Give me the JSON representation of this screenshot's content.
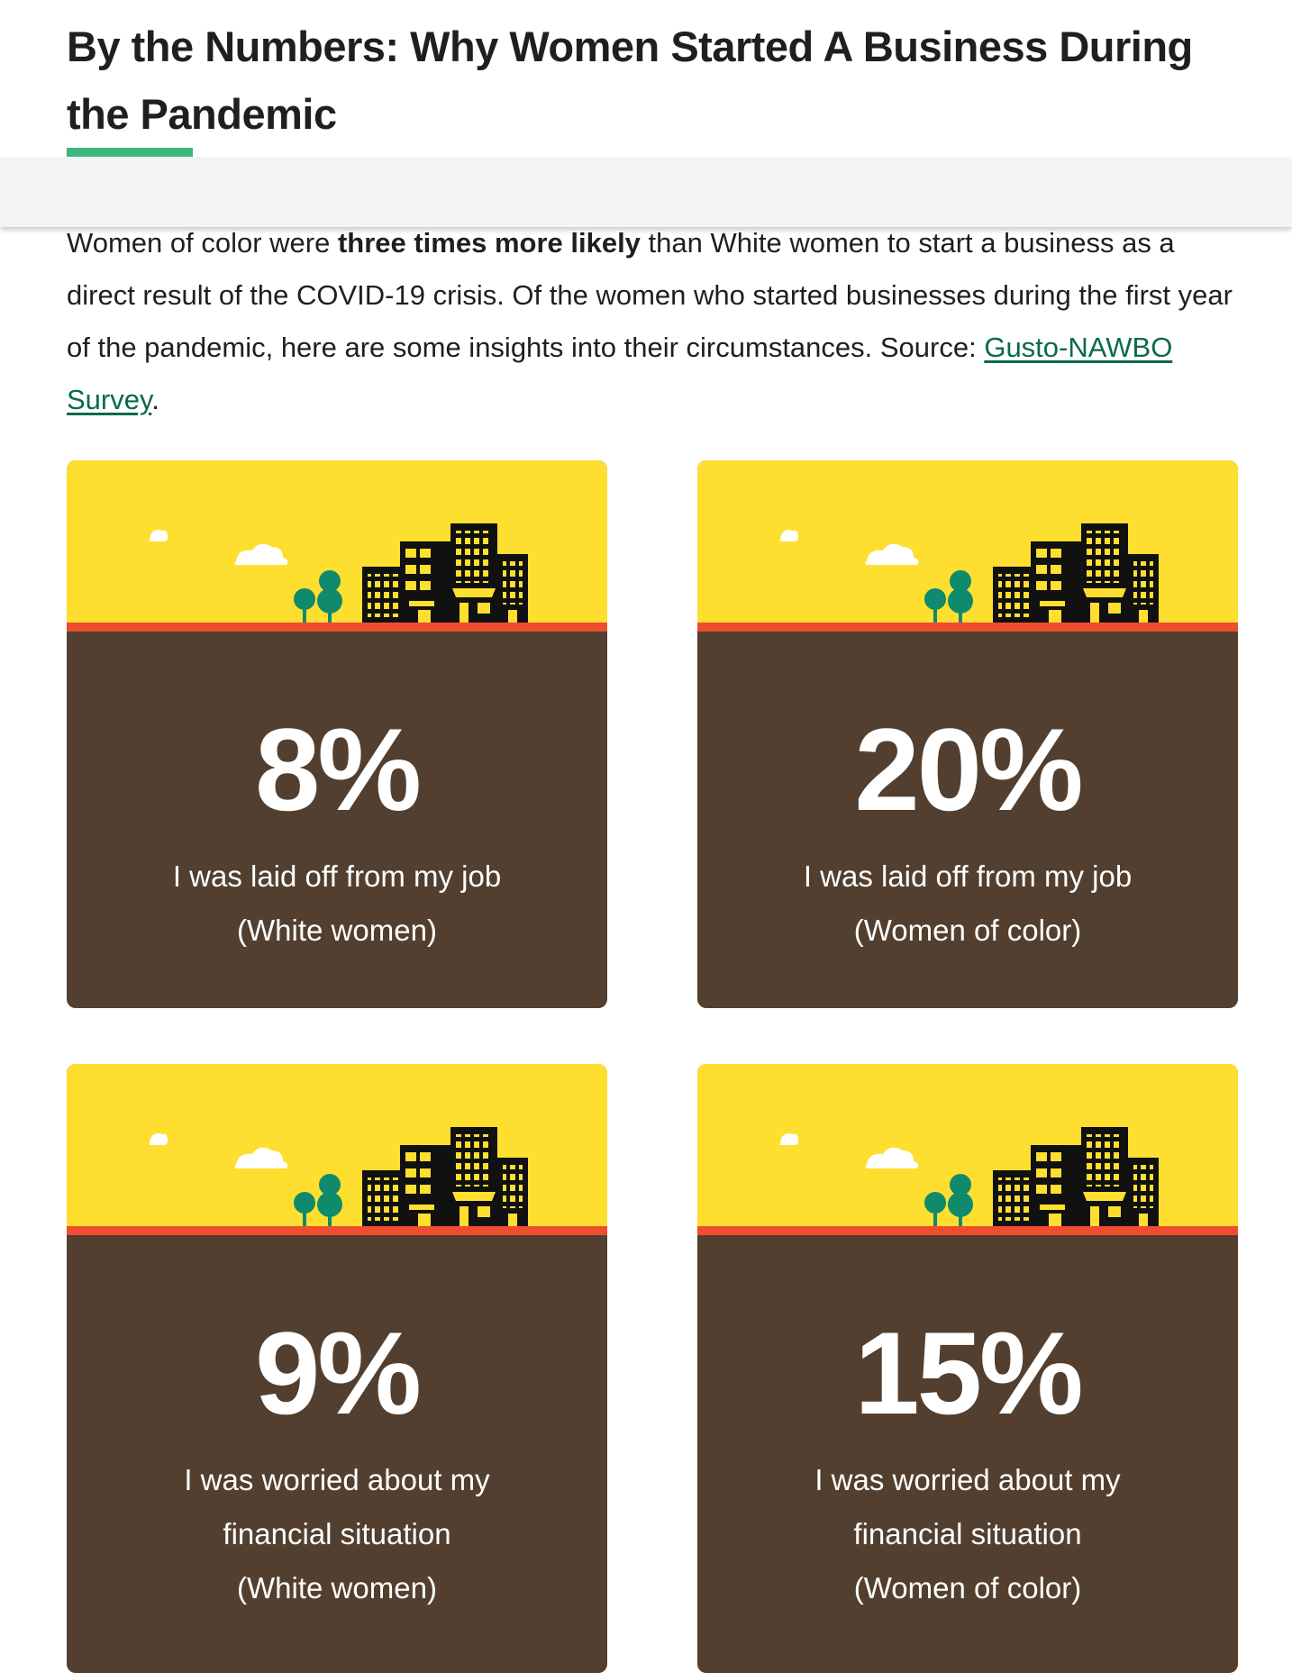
{
  "header": {
    "title": "By the Numbers: Why Women Started A Business During the Pandemic"
  },
  "intro": {
    "text_before": "Women of color were ",
    "emphasis": "three times more likely",
    "text_after": " than White women to start a business as a direct result of the COVID-19 crisis. Of the women who started businesses during the first year of the pandemic, here are some insights into their circumstances. Source: ",
    "source_link": "Gusto-NAWBO Survey",
    "trailing": "."
  },
  "cards": [
    {
      "value": "8%",
      "lines": [
        "I was laid off from my job",
        "(White women)"
      ]
    },
    {
      "value": "20%",
      "lines": [
        "I was laid off from my job",
        "(Women of color)"
      ]
    },
    {
      "value": "9%",
      "lines": [
        "I was worried about my",
        "financial situation",
        "(White women)"
      ]
    },
    {
      "value": "15%",
      "lines": [
        "I was worried about my",
        "financial situation",
        "(Women of color)"
      ]
    }
  ],
  "colors": {
    "accent_green": "#3fb67f",
    "link_green": "#0a6b45",
    "card_brown": "#523f2f",
    "banner_yellow": "#fedf2f",
    "banner_red": "#ee4d2f",
    "tree_teal": "#0f8a6d"
  },
  "icons": {
    "banner_illustration": "city-skyline-icon"
  }
}
